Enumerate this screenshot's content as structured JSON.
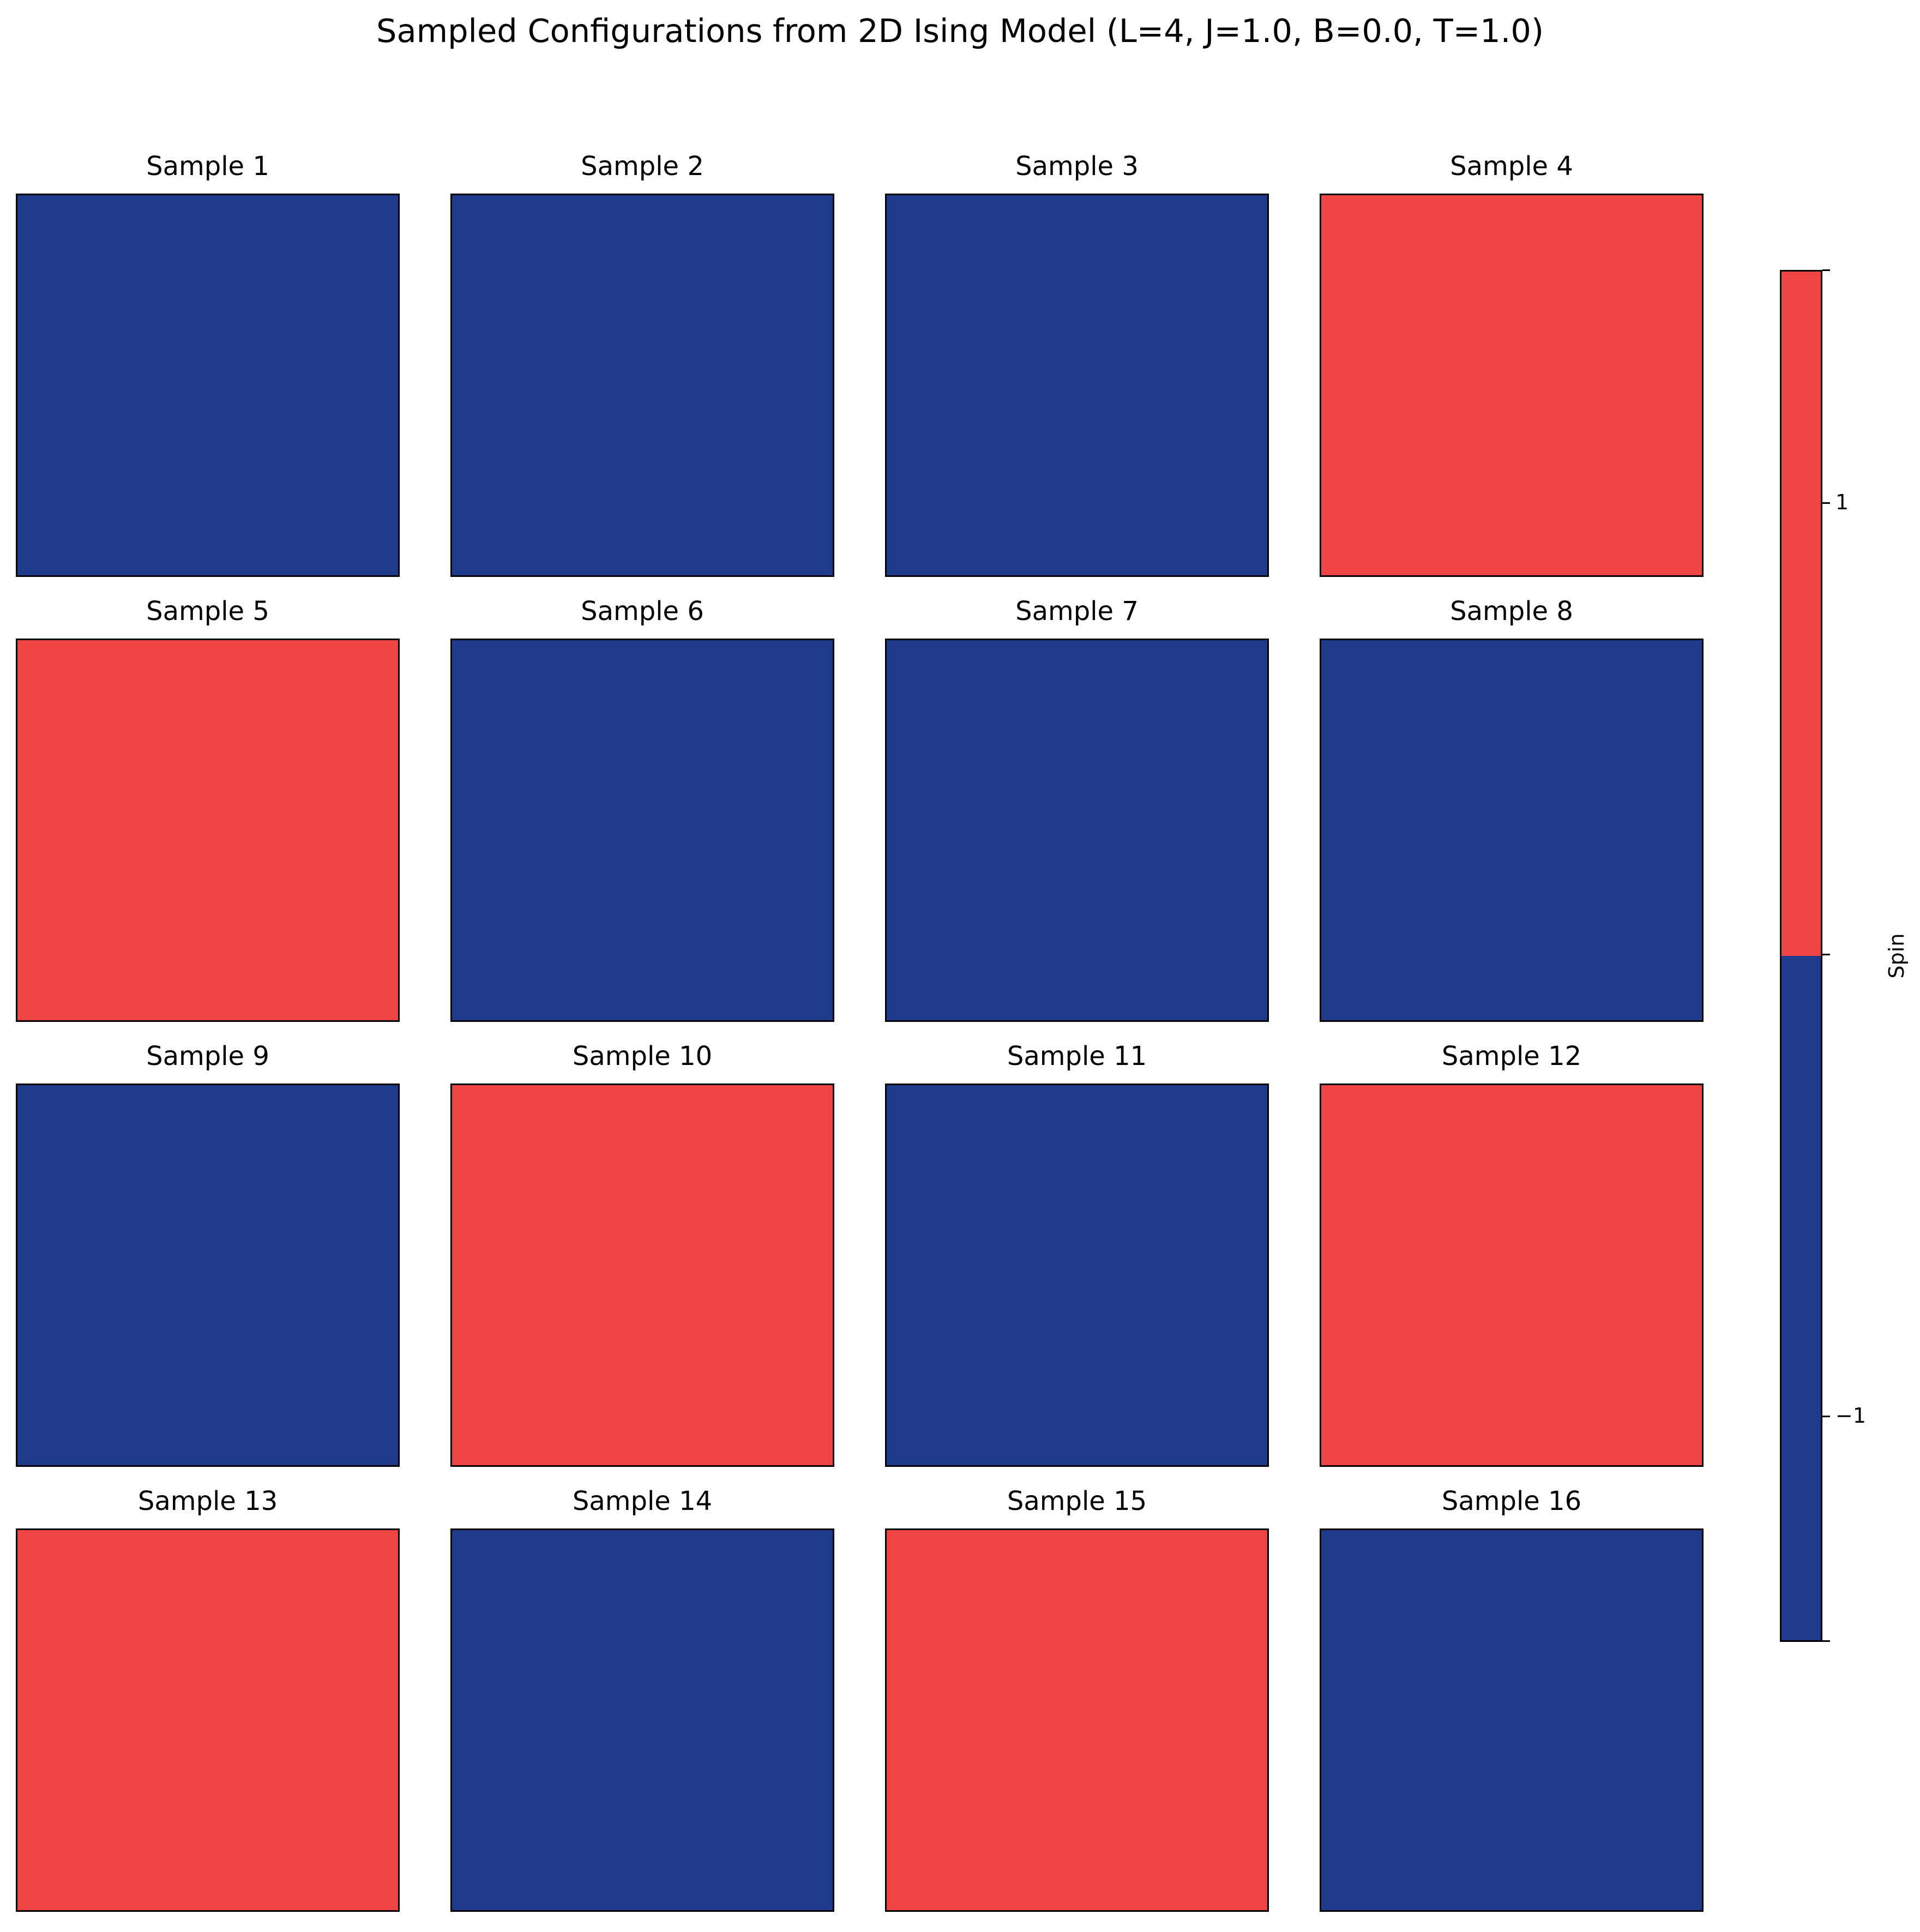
{
  "chart_data": {
    "type": "heatmap",
    "title": "Sampled Configurations from 2D Ising Model (L=4, J=1.0, B=0.0, T=1.0)",
    "lattice_size": 4,
    "panels": [
      {
        "title": "Sample 1",
        "spin": -1
      },
      {
        "title": "Sample 2",
        "spin": -1
      },
      {
        "title": "Sample 3",
        "spin": -1
      },
      {
        "title": "Sample 4",
        "spin": 1
      },
      {
        "title": "Sample 5",
        "spin": 1
      },
      {
        "title": "Sample 6",
        "spin": -1
      },
      {
        "title": "Sample 7",
        "spin": -1
      },
      {
        "title": "Sample 8",
        "spin": -1
      },
      {
        "title": "Sample 9",
        "spin": -1
      },
      {
        "title": "Sample 10",
        "spin": 1
      },
      {
        "title": "Sample 11",
        "spin": -1
      },
      {
        "title": "Sample 12",
        "spin": 1
      },
      {
        "title": "Sample 13",
        "spin": 1
      },
      {
        "title": "Sample 14",
        "spin": -1
      },
      {
        "title": "Sample 15",
        "spin": 1
      },
      {
        "title": "Sample 16",
        "spin": -1
      }
    ],
    "colorbar": {
      "label": "Spin",
      "ticks": [
        "1",
        "−1"
      ],
      "colors": {
        "1": "#ef4444",
        "-1": "#1e3a8a"
      }
    }
  }
}
